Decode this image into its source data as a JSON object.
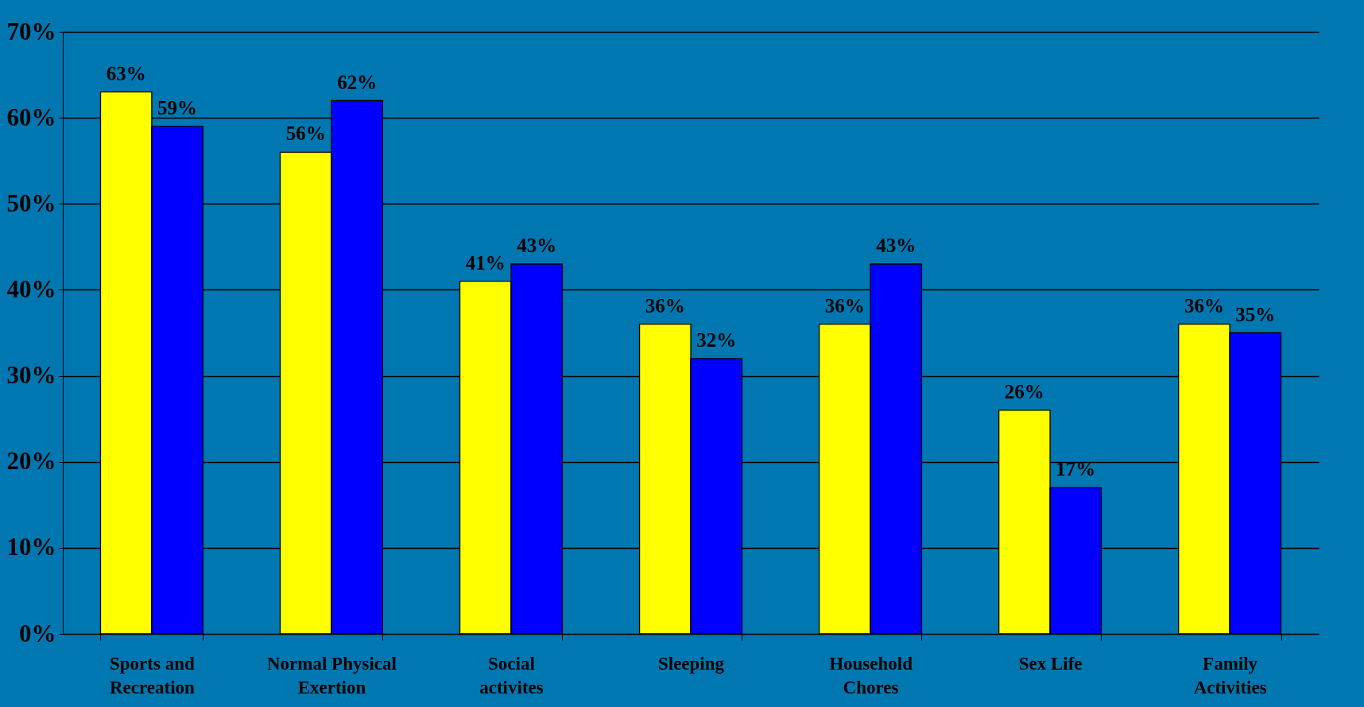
{
  "chart_data": {
    "type": "bar",
    "categories": [
      "Sports and Recreation",
      "Normal Physical Exertion",
      "Social activites",
      "Sleeping",
      "Household Chores",
      "Sex Life",
      "Family Activities"
    ],
    "series": [
      {
        "color": "#ffff00",
        "values": [
          63,
          56,
          41,
          36,
          36,
          26,
          36
        ],
        "value_labels": [
          "63%",
          "56%",
          "41%",
          "36%",
          "36%",
          "26%",
          "36%"
        ]
      },
      {
        "color": "#0000ff",
        "values": [
          59,
          62,
          43,
          32,
          43,
          17,
          35
        ],
        "value_labels": [
          "59%",
          "62%",
          "43%",
          "32%",
          "43%",
          "17%",
          "35%"
        ]
      }
    ],
    "ylim": [
      0,
      70
    ],
    "yticks": [
      {
        "value": 0,
        "label": "0%"
      },
      {
        "value": 10,
        "label": "10%"
      },
      {
        "value": 20,
        "label": "20%"
      },
      {
        "value": 30,
        "label": "30%"
      },
      {
        "value": 40,
        "label": "40%"
      },
      {
        "value": 50,
        "label": "50%"
      },
      {
        "value": 60,
        "label": "60%"
      },
      {
        "value": 70,
        "label": "70%"
      }
    ],
    "grid": "y"
  }
}
